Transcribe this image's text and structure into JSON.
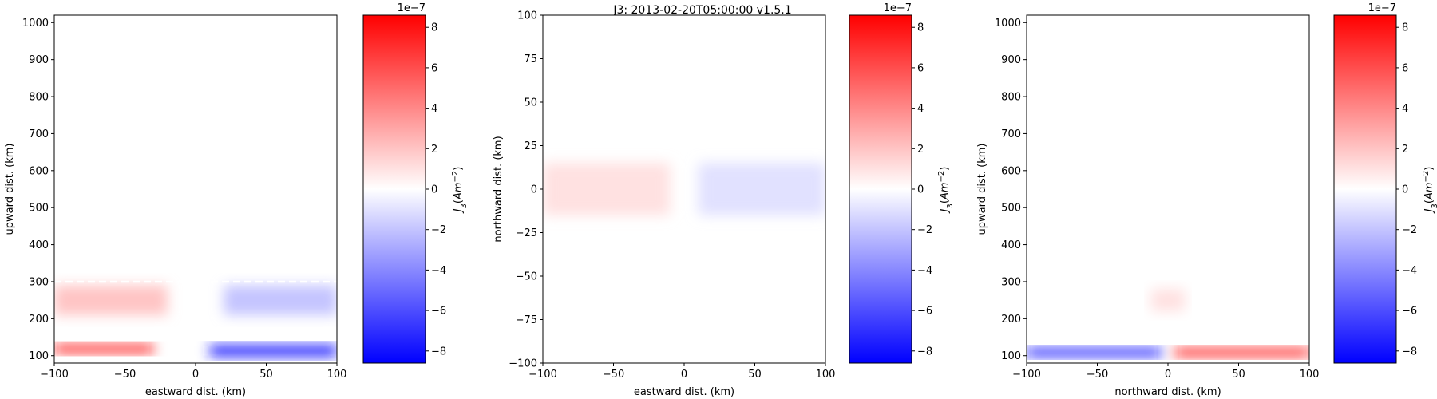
{
  "title": "J3: 2013-02-20T05:00:00  v1.5.1",
  "colors": {
    "positive": "#ff0000",
    "negative": "#0000ff",
    "zero": "#ffffff",
    "dashed_line": "#ffffff"
  },
  "chart_data": [
    {
      "type": "heatmap",
      "xlabel": "eastward dist. (km)",
      "ylabel": "upward dist. (km)",
      "xlim": [
        -100,
        100
      ],
      "ylim": [
        80,
        1020
      ],
      "xticks": [
        -100,
        -50,
        0,
        50,
        100
      ],
      "yticks": [
        100,
        200,
        300,
        400,
        500,
        600,
        700,
        800,
        900,
        1000
      ],
      "dashed_reference_y": 300,
      "blobs": [
        {
          "x": [
            -100,
            -20
          ],
          "y": [
            210,
            290
          ],
          "value": 2e-07
        },
        {
          "x": [
            20,
            100
          ],
          "y": [
            210,
            290
          ],
          "value": -2e-07
        },
        {
          "x": [
            -100,
            -30
          ],
          "y": [
            108,
            130
          ],
          "value": 8e-07
        },
        {
          "x": [
            10,
            100
          ],
          "y": [
            98,
            128
          ],
          "value": -7.5e-07
        }
      ],
      "colorbar": {
        "label": "J_3(Am^-2)",
        "scale": "1e−7",
        "range": [
          -8.6e-07,
          8.6e-07
        ],
        "ticks": [
          8,
          6,
          4,
          2,
          0,
          -2,
          -4,
          -6,
          -8
        ]
      }
    },
    {
      "type": "heatmap",
      "xlabel": "eastward dist. (km)",
      "ylabel": "northward dist. (km)",
      "xlim": [
        -100,
        100
      ],
      "ylim": [
        -100,
        100
      ],
      "xticks": [
        -100,
        -50,
        0,
        50,
        100
      ],
      "yticks": [
        -100,
        -75,
        -50,
        -25,
        0,
        25,
        50,
        75,
        100
      ],
      "blobs": [
        {
          "x": [
            -100,
            -10
          ],
          "y": [
            -15,
            15
          ],
          "value": 1e-07
        },
        {
          "x": [
            10,
            100
          ],
          "y": [
            -15,
            15
          ],
          "value": -1e-07
        }
      ],
      "colorbar": {
        "label": "J_3(Am^-2)",
        "scale": "1e−7",
        "range": [
          -8.6e-07,
          8.6e-07
        ],
        "ticks": [
          8,
          6,
          4,
          2,
          0,
          -2,
          -4,
          -6,
          -8
        ]
      }
    },
    {
      "type": "heatmap",
      "xlabel": "northward dist. (km)",
      "ylabel": "upward dist. (km)",
      "xlim": [
        -100,
        100
      ],
      "ylim": [
        80,
        1020
      ],
      "xticks": [
        -100,
        -50,
        0,
        50,
        100
      ],
      "yticks": [
        100,
        200,
        300,
        400,
        500,
        600,
        700,
        800,
        900,
        1000
      ],
      "blobs": [
        {
          "x": [
            -12,
            12
          ],
          "y": [
            220,
            280
          ],
          "value": 1e-07
        },
        {
          "x": [
            -100,
            -5
          ],
          "y": [
            98,
            120
          ],
          "value": -8e-07
        },
        {
          "x": [
            5,
            100
          ],
          "y": [
            98,
            120
          ],
          "value": 8e-07
        }
      ],
      "colorbar": {
        "label": "J_3(Am^-2)",
        "scale": "1e−7",
        "range": [
          -8.6e-07,
          8.6e-07
        ],
        "ticks": [
          8,
          6,
          4,
          2,
          0,
          -2,
          -4,
          -6,
          -8
        ]
      }
    }
  ]
}
